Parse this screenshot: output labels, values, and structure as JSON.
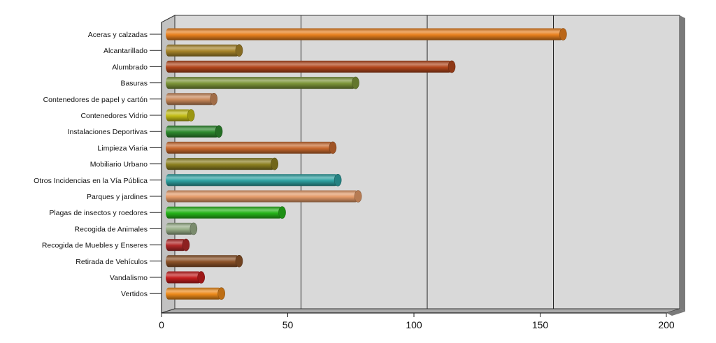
{
  "chart_data": {
    "type": "bar",
    "orientation": "horizontal",
    "style": "3d-cylinder",
    "title": "",
    "xlabel": "",
    "ylabel": "",
    "xlim": [
      0,
      200
    ],
    "x_ticks": [
      0,
      50,
      100,
      150,
      200
    ],
    "grid": true,
    "legend": "none",
    "categories": [
      "Aceras y calzadas",
      "Alcantarillado",
      "Alumbrado",
      "Basuras",
      "Contenedores de papel y cartón",
      "Contenedores Vidrio",
      "Instalaciones Deportivas",
      "Limpieza Viaria",
      "Mobiliario Urbano",
      "Otros Incidencias en la Vía Pública",
      "Parques y jardines",
      "Plagas de insectos y roedores",
      "Recogida de Animales",
      "Recogida de Muebles y Enseres",
      "Retirada de Vehículos",
      "Vandalismo",
      "Vertidos"
    ],
    "values": [
      157,
      29,
      113,
      75,
      19,
      10,
      21,
      66,
      43,
      68,
      76,
      46,
      11,
      8,
      29,
      14,
      22
    ],
    "colors": [
      "#e8801e",
      "#a8862a",
      "#b2461c",
      "#7c9438",
      "#c9885a",
      "#c2bc16",
      "#2e8a2e",
      "#c8692e",
      "#8c8020",
      "#2ea2a2",
      "#e49a68",
      "#26b41a",
      "#98ae88",
      "#b02828",
      "#8c5228",
      "#c41e1e",
      "#ec8a1a"
    ]
  }
}
